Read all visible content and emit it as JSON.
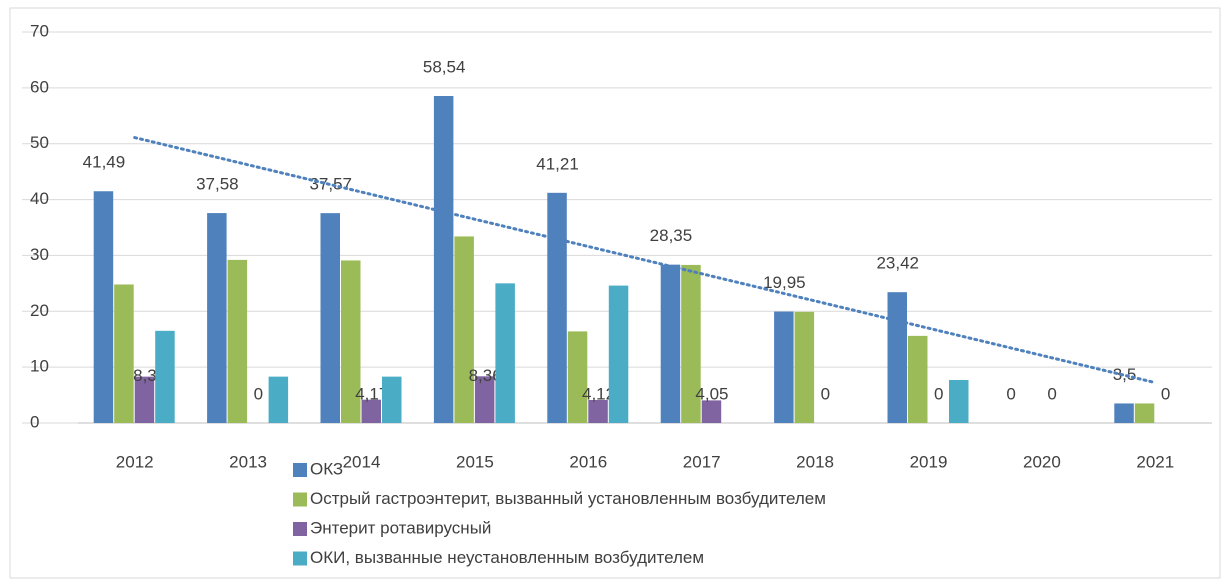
{
  "chart_data": {
    "type": "bar",
    "categories": [
      "2012",
      "2013",
      "2014",
      "2015",
      "2016",
      "2017",
      "2018",
      "2019",
      "2020",
      "2021"
    ],
    "series": [
      {
        "name": "ОКЗ",
        "color": "#4f81bd",
        "values": [
          41.49,
          37.58,
          37.57,
          58.54,
          41.21,
          28.35,
          19.95,
          23.42,
          0,
          3.5
        ],
        "value_labels": [
          "41,49",
          "37,58",
          "37,57",
          "58,54",
          "41,21",
          "28,35",
          "19,95",
          "23,42",
          "0",
          "3,5"
        ],
        "trendline": "linear"
      },
      {
        "name": "Острый гастроэнтерит, вызванный установленным возбудителем",
        "color": "#9bbb59",
        "values": [
          24.8,
          29.2,
          29.1,
          33.4,
          16.4,
          28.3,
          19.9,
          15.6,
          0,
          3.5
        ]
      },
      {
        "name": "Энтерит ротавирусный",
        "color": "#8064a2",
        "values": [
          8.3,
          0,
          4.17,
          8.36,
          4.12,
          4.05,
          0,
          0,
          0,
          0
        ],
        "value_labels": [
          "8,3",
          "0",
          "4,17",
          "8,36",
          "4,12",
          "4,05",
          "0",
          "0",
          "0",
          "0"
        ]
      },
      {
        "name": "ОКИ, вызванные неустановленным возбудителем",
        "color": "#4bacc6",
        "values": [
          16.5,
          8.3,
          8.3,
          25,
          24.6,
          0,
          0,
          7.7,
          0,
          0
        ]
      }
    ],
    "ylim": [
      0,
      70
    ],
    "yticks": [
      0,
      10,
      20,
      30,
      40,
      50,
      60,
      70
    ],
    "grid": true,
    "legend": "bottom"
  }
}
